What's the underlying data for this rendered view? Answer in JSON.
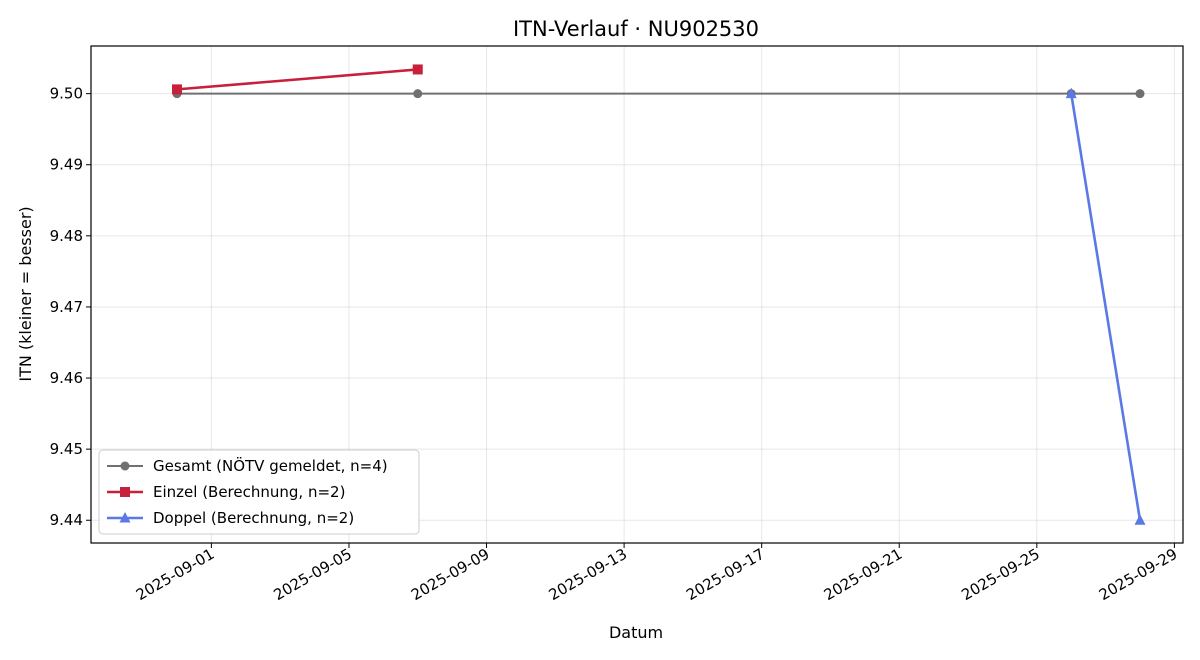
{
  "chart_data": {
    "type": "line",
    "title": "ITN-Verlauf · NU902530",
    "xlabel": "Datum",
    "ylabel": "ITN  (kleiner = besser)",
    "xlim": [
      "2025-08-28T12:00",
      "2025-09-29T06:00"
    ],
    "ylim": [
      9.4368,
      9.5067
    ],
    "y_ticks": [
      9.44,
      9.45,
      9.46,
      9.47,
      9.48,
      9.49,
      9.5
    ],
    "y_tick_labels": [
      "9.44",
      "9.45",
      "9.46",
      "9.47",
      "9.48",
      "9.49",
      "9.50"
    ],
    "x_ticks": [
      "2025-09-01",
      "2025-09-05",
      "2025-09-09",
      "2025-09-13",
      "2025-09-17",
      "2025-09-21",
      "2025-09-25",
      "2025-09-29"
    ],
    "grid": true,
    "legend_position": "lower-left",
    "series": [
      {
        "name": "Gesamt (NÖTV gemeldet, n=4)",
        "color": "#707070",
        "marker": "circle",
        "points": [
          {
            "x": "2025-08-31",
            "y": 9.5
          },
          {
            "x": "2025-09-07",
            "y": 9.5
          },
          {
            "x": "2025-09-26",
            "y": 9.5
          },
          {
            "x": "2025-09-28",
            "y": 9.5
          }
        ]
      },
      {
        "name": "Einzel (Berechnung, n=2)",
        "color": "#c8203c",
        "marker": "square",
        "points": [
          {
            "x": "2025-08-31",
            "y": 9.5006
          },
          {
            "x": "2025-09-07",
            "y": 9.5034
          }
        ]
      },
      {
        "name": "Doppel (Berechnung, n=2)",
        "color": "#5a78e6",
        "marker": "triangle",
        "points": [
          {
            "x": "2025-09-26",
            "y": 9.5
          },
          {
            "x": "2025-09-28",
            "y": 9.44
          }
        ]
      }
    ]
  }
}
